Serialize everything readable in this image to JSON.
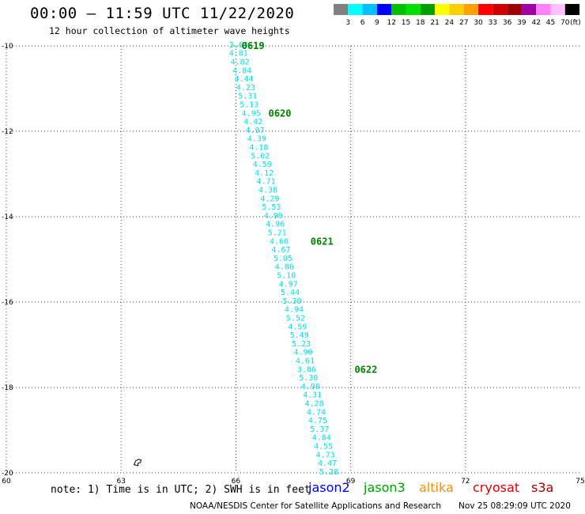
{
  "title": "00:00 – 11:59 UTC 11/22/2020",
  "subtitle": "12 hour collection of altimeter wave heights",
  "legend": {
    "labels": [
      "3",
      "6",
      "9",
      "12",
      "15",
      "18",
      "21",
      "24",
      "27",
      "30",
      "33",
      "36",
      "39",
      "42",
      "45",
      "70"
    ],
    "unit": "(ft)",
    "colors": [
      "#808080",
      "#00ffff",
      "#00c0ff",
      "#0000ff",
      "#00c000",
      "#00e000",
      "#00a000",
      "#ffff00",
      "#ffd000",
      "#ffa000",
      "#ff0000",
      "#d00000",
      "#a00000",
      "#a000a0",
      "#ff80ff",
      "#ffc0ff",
      "#000000"
    ]
  },
  "axes": {
    "lon_ticks": [
      "60",
      "63",
      "66",
      "69",
      "72",
      "75"
    ],
    "lat_ticks": [
      "-10",
      "-12",
      "-14",
      "-16",
      "-18",
      "-20"
    ]
  },
  "track": {
    "color": "#00e0e0",
    "time_color": "#008000",
    "readings": [
      {
        "lon": 65.82,
        "lat": -9.98,
        "text": "3.64"
      },
      {
        "lon": 65.82,
        "lat": -10.18,
        "text": "4.81"
      },
      {
        "lon": 65.86,
        "lat": -10.38,
        "text": "4.82"
      },
      {
        "lon": 65.91,
        "lat": -10.58,
        "text": "4.84"
      },
      {
        "lon": 65.96,
        "lat": -10.78,
        "text": "4.44"
      },
      {
        "lon": 66.01,
        "lat": -10.98,
        "text": "4.23"
      },
      {
        "lon": 66.06,
        "lat": -11.18,
        "text": "5.31"
      },
      {
        "lon": 66.1,
        "lat": -11.38,
        "text": "5.13"
      },
      {
        "lon": 66.15,
        "lat": -11.58,
        "text": "4.95"
      },
      {
        "lon": 66.2,
        "lat": -11.78,
        "text": "4.42"
      },
      {
        "lon": 66.25,
        "lat": -11.98,
        "text": "4.97"
      },
      {
        "lon": 66.3,
        "lat": -12.18,
        "text": "4.39"
      },
      {
        "lon": 66.35,
        "lat": -12.38,
        "text": "4.18"
      },
      {
        "lon": 66.39,
        "lat": -12.58,
        "text": "5.02"
      },
      {
        "lon": 66.44,
        "lat": -12.78,
        "text": "4.59"
      },
      {
        "lon": 66.49,
        "lat": -12.98,
        "text": "4.12"
      },
      {
        "lon": 66.54,
        "lat": -13.18,
        "text": "4.71"
      },
      {
        "lon": 66.59,
        "lat": -13.38,
        "text": "4.38"
      },
      {
        "lon": 66.64,
        "lat": -13.58,
        "text": "4.29"
      },
      {
        "lon": 66.68,
        "lat": -13.78,
        "text": "5.53"
      },
      {
        "lon": 66.73,
        "lat": -13.98,
        "text": "4.99"
      },
      {
        "lon": 66.78,
        "lat": -14.18,
        "text": "4.96"
      },
      {
        "lon": 66.83,
        "lat": -14.38,
        "text": "5.21"
      },
      {
        "lon": 66.88,
        "lat": -14.58,
        "text": "4.60"
      },
      {
        "lon": 66.93,
        "lat": -14.78,
        "text": "4.67"
      },
      {
        "lon": 66.98,
        "lat": -14.98,
        "text": "5.05"
      },
      {
        "lon": 67.02,
        "lat": -15.18,
        "text": "4.86"
      },
      {
        "lon": 67.07,
        "lat": -15.38,
        "text": "5.10"
      },
      {
        "lon": 67.12,
        "lat": -15.58,
        "text": "4.97"
      },
      {
        "lon": 67.17,
        "lat": -15.78,
        "text": "5.44"
      },
      {
        "lon": 67.22,
        "lat": -15.98,
        "text": "5.39"
      },
      {
        "lon": 67.27,
        "lat": -16.18,
        "text": "4.94"
      },
      {
        "lon": 67.31,
        "lat": -16.38,
        "text": "5.52"
      },
      {
        "lon": 67.36,
        "lat": -16.58,
        "text": "4.59"
      },
      {
        "lon": 67.41,
        "lat": -16.78,
        "text": "5.49"
      },
      {
        "lon": 67.46,
        "lat": -16.98,
        "text": "5.23"
      },
      {
        "lon": 67.51,
        "lat": -17.18,
        "text": "4.90"
      },
      {
        "lon": 67.56,
        "lat": -17.38,
        "text": "4.61"
      },
      {
        "lon": 67.6,
        "lat": -17.58,
        "text": "3.86"
      },
      {
        "lon": 67.65,
        "lat": -17.78,
        "text": "5.30"
      },
      {
        "lon": 67.7,
        "lat": -17.98,
        "text": "4.98"
      },
      {
        "lon": 67.75,
        "lat": -18.18,
        "text": "4.31"
      },
      {
        "lon": 67.8,
        "lat": -18.38,
        "text": "4.28"
      },
      {
        "lon": 67.85,
        "lat": -18.58,
        "text": "4.74"
      },
      {
        "lon": 67.89,
        "lat": -18.78,
        "text": "4.75"
      },
      {
        "lon": 67.94,
        "lat": -18.98,
        "text": "5.37"
      },
      {
        "lon": 67.99,
        "lat": -19.18,
        "text": "4.84"
      },
      {
        "lon": 68.04,
        "lat": -19.38,
        "text": "4.55"
      },
      {
        "lon": 68.09,
        "lat": -19.58,
        "text": "4.73"
      },
      {
        "lon": 68.14,
        "lat": -19.78,
        "text": "4.47"
      },
      {
        "lon": 68.18,
        "lat": -19.98,
        "text": "5.28"
      }
    ],
    "times": [
      {
        "lon": 66.15,
        "lat": -10.0,
        "text": "0619"
      },
      {
        "lon": 66.85,
        "lat": -11.58,
        "text": "0620"
      },
      {
        "lon": 67.95,
        "lat": -14.58,
        "text": "0621"
      },
      {
        "lon": 69.1,
        "lat": -17.58,
        "text": "0622"
      }
    ]
  },
  "island": {
    "lon": 63.4,
    "lat": -19.7
  },
  "note": "note: 1) Time is in UTC; 2) SWH is in feet",
  "satellites": [
    {
      "name": "jason2",
      "color": "#0000ff"
    },
    {
      "name": "jason3",
      "color": "#00a000"
    },
    {
      "name": "altika",
      "color": "#ff8c00"
    },
    {
      "name": "cryosat",
      "color": "#e00000"
    },
    {
      "name": "s3a",
      "color": "#a00000"
    }
  ],
  "credit": "NOAA/NESDIS Center for Satellite Applications and Research",
  "timestamp": "Nov 25 08:29:09 UTC 2020"
}
